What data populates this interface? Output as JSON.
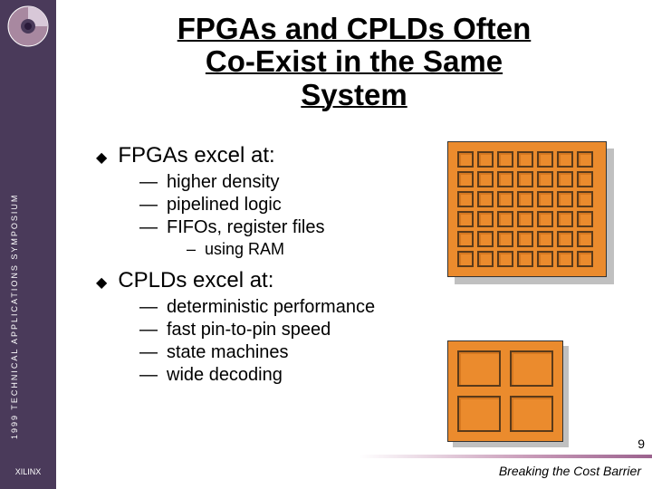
{
  "sidebar": {
    "vertical_text": "1999  TECHNICAL  APPLICATIONS  SYMPOSIUM",
    "xilinx": "XILINX"
  },
  "title": {
    "line1": "FPGAs and CPLDs Often",
    "line2": "Co-Exist in the Same",
    "line3": "System",
    "fontsize": 33,
    "color": "#000000"
  },
  "content": {
    "fpga_heading": "FPGAs excel at:",
    "fpga_subs": {
      "s0": "higher density",
      "s1": "pipelined logic",
      "s2": "FIFOs, register files"
    },
    "fpga_sub2": "using RAM",
    "cpld_heading": "CPLDs excel at:",
    "cpld_subs": {
      "s0": "deterministic performance",
      "s1": "fast pin-to-pin speed",
      "s2": "state machines",
      "s3": "wide decoding"
    }
  },
  "fpga_diagram": {
    "type": "grid",
    "cols": 7,
    "rows": 6,
    "fill_color": "#eb8b2d",
    "cell_border": "#5a3a1a",
    "shadow_color": "#c0c0c0"
  },
  "cpld_diagram": {
    "type": "grid",
    "cols": 2,
    "rows": 2,
    "fill_color": "#eb8b2d",
    "cell_border": "#5a3a1a",
    "shadow_color": "#c0c0c0"
  },
  "footer": {
    "text": "Breaking the Cost Barrier",
    "page": "9",
    "bar_gradient_start": "#ffffff",
    "bar_gradient_end": "#884a7c"
  }
}
